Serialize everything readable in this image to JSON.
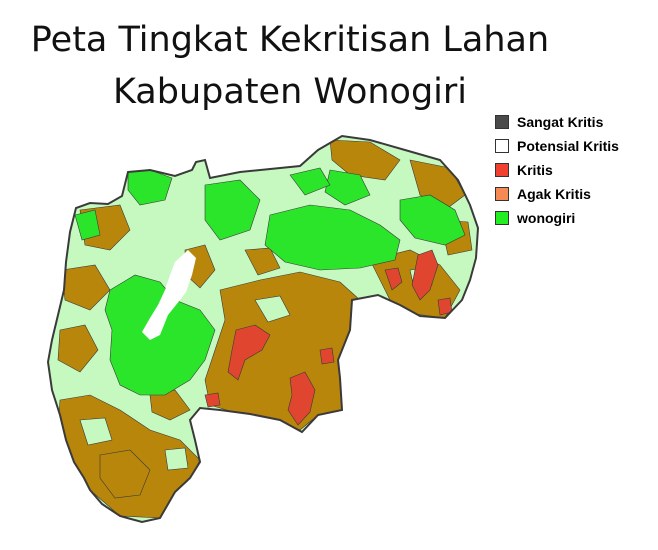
{
  "title": {
    "line1": "Peta Tingkat Kekritisan Lahan",
    "line2": "Kabupaten Wonogiri"
  },
  "legend": [
    {
      "label": "Sangat Kritis",
      "color": "#4a4a4a"
    },
    {
      "label": "Potensial Kritis",
      "color": "#ffffff"
    },
    {
      "label": "Kritis",
      "color": "#f04030"
    },
    {
      "label": "Agak Kritis",
      "color": "#f58a55"
    },
    {
      "label": "wonogiri",
      "color": "#22ee22"
    }
  ],
  "map_colors": {
    "light_green": "#c6f9bf",
    "bright_green": "#2ae52a",
    "brown": "#b8860b",
    "red": "#e0452f",
    "outline": "#3a3a3a",
    "reservoir": "#ffffff"
  }
}
